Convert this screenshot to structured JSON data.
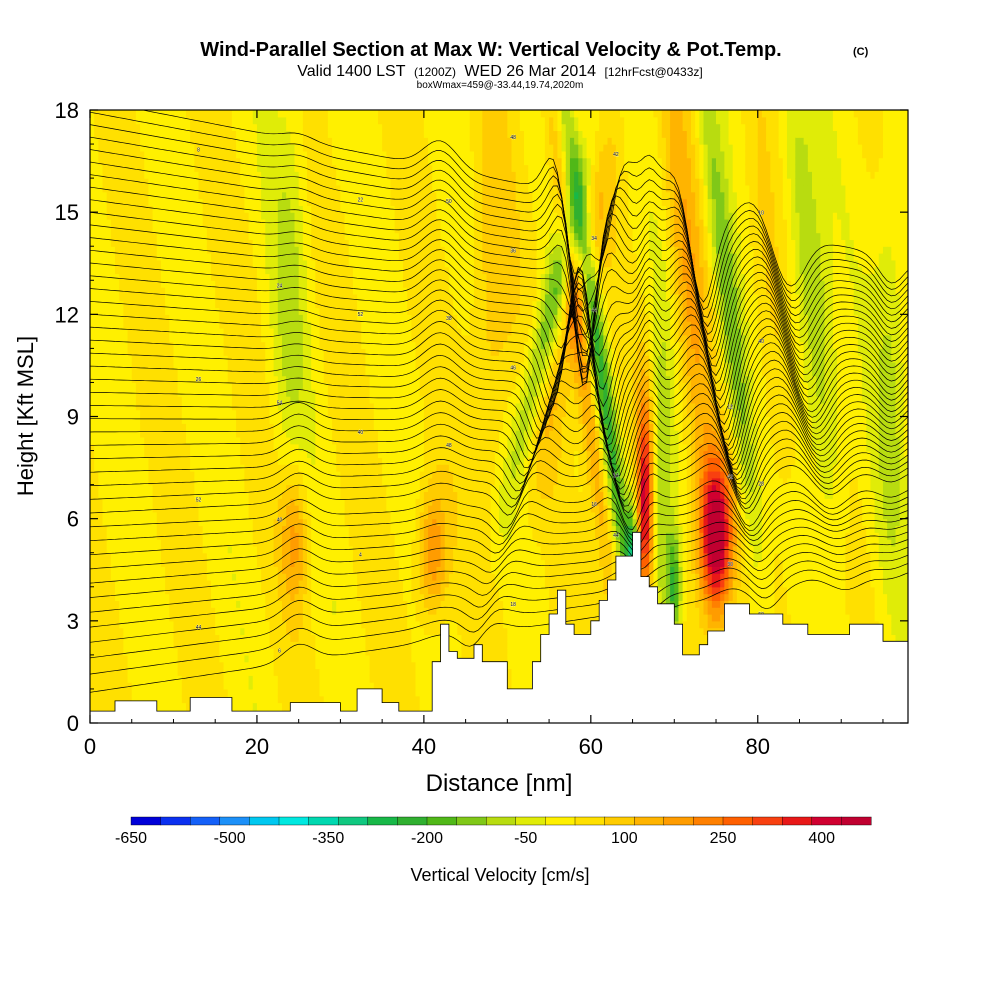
{
  "header": {
    "title": "Wind-Parallel Section at Max W: Vertical Velocity & Pot.Temp.",
    "copyright": "(C)",
    "valid_prefix": "Valid 1400 LST",
    "valid_z": "(1200Z)",
    "valid_date": "WED 26 Mar 2014",
    "valid_fcst": "[12hrFcst@0433z]",
    "boxinfo": "boxWmax=459@-33.44,19.74,2020m"
  },
  "chart_data": {
    "type": "heatmap",
    "title": "Wind-Parallel Section at Max W: Vertical Velocity & Pot.Temp.",
    "xlabel": "Distance [nm]",
    "ylabel": "Height [Kft MSL]",
    "xlim": [
      0,
      98
    ],
    "ylim": [
      0,
      18
    ],
    "x_ticks": [
      0,
      20,
      40,
      60,
      80
    ],
    "y_ticks": [
      0,
      3,
      6,
      9,
      12,
      15,
      18
    ],
    "x_tick_labels": [
      "0",
      "20",
      "40",
      "60",
      "80"
    ],
    "y_tick_labels": [
      "0",
      "3",
      "6",
      "9",
      "12",
      "15",
      "18"
    ],
    "colorbar": {
      "label": "Vertical Velocity [cm/s]",
      "tick_labels": [
        "-650",
        "-500",
        "-350",
        "-200",
        "-50",
        "100",
        "250",
        "400"
      ],
      "tick_values": [
        -650,
        -500,
        -350,
        -200,
        -50,
        100,
        250,
        400
      ],
      "range": [
        -650,
        475
      ],
      "colors": [
        "#0000d8",
        "#0a30f0",
        "#1460f8",
        "#1c90f8",
        "#00c8f0",
        "#00e8e0",
        "#00d8b0",
        "#10c880",
        "#18b848",
        "#30b030",
        "#50b818",
        "#80c818",
        "#b8dc10",
        "#e0ec08",
        "#fff000",
        "#ffe000",
        "#ffcc00",
        "#ffb400",
        "#ff9c00",
        "#ff8000",
        "#ff6000",
        "#f84010",
        "#e81818",
        "#d00030",
        "#c00030"
      ]
    },
    "terrain": [
      [
        0,
        0.35
      ],
      [
        3,
        0.35
      ],
      [
        3,
        0.65
      ],
      [
        8,
        0.65
      ],
      [
        8,
        0.35
      ],
      [
        12,
        0.35
      ],
      [
        12,
        0.75
      ],
      [
        17,
        0.75
      ],
      [
        17,
        0.35
      ],
      [
        24,
        0.35
      ],
      [
        24,
        0.6
      ],
      [
        30,
        0.6
      ],
      [
        30,
        0.35
      ],
      [
        32,
        0.35
      ],
      [
        32,
        1
      ],
      [
        35,
        1
      ],
      [
        35,
        0.6
      ],
      [
        37,
        0.6
      ],
      [
        37,
        0.35
      ],
      [
        41,
        0.35
      ],
      [
        41,
        1.8
      ],
      [
        42,
        1.8
      ],
      [
        42,
        2.9
      ],
      [
        43,
        2.9
      ],
      [
        43,
        2.1
      ],
      [
        44,
        2.1
      ],
      [
        44,
        1.9
      ],
      [
        46,
        1.9
      ],
      [
        46,
        2.3
      ],
      [
        47,
        2.3
      ],
      [
        47,
        1.8
      ],
      [
        50,
        1.8
      ],
      [
        50,
        1
      ],
      [
        53,
        1
      ],
      [
        53,
        1.8
      ],
      [
        54,
        1.8
      ],
      [
        54,
        2.6
      ],
      [
        55,
        2.6
      ],
      [
        55,
        3.2
      ],
      [
        56,
        3.2
      ],
      [
        56,
        3.9
      ],
      [
        57,
        3.9
      ],
      [
        57,
        2.9
      ],
      [
        58,
        2.9
      ],
      [
        58,
        2.6
      ],
      [
        60,
        2.6
      ],
      [
        60,
        3
      ],
      [
        61,
        3
      ],
      [
        61,
        3.6
      ],
      [
        62,
        3.6
      ],
      [
        62,
        4.2
      ],
      [
        63,
        4.2
      ],
      [
        63,
        4.9
      ],
      [
        65,
        4.9
      ],
      [
        65,
        5.6
      ],
      [
        66,
        5.6
      ],
      [
        66,
        4.3
      ],
      [
        67,
        4.3
      ],
      [
        67,
        4
      ],
      [
        68,
        4
      ],
      [
        68,
        3.5
      ],
      [
        70,
        3.5
      ],
      [
        70,
        2.9
      ],
      [
        71,
        2.9
      ],
      [
        71,
        2
      ],
      [
        73,
        2
      ],
      [
        73,
        2.3
      ],
      [
        74,
        2.3
      ],
      [
        74,
        2.7
      ],
      [
        76,
        2.7
      ],
      [
        76,
        3.5
      ],
      [
        79,
        3.5
      ],
      [
        79,
        3.2
      ],
      [
        83,
        3.2
      ],
      [
        83,
        2.9
      ],
      [
        86,
        2.9
      ],
      [
        86,
        2.6
      ],
      [
        91,
        2.6
      ],
      [
        91,
        2.9
      ],
      [
        95,
        2.9
      ],
      [
        95,
        2.4
      ],
      [
        98,
        2.4
      ]
    ],
    "contour_labels": [
      "44",
      "40",
      "40",
      "38",
      "36",
      "34",
      "32",
      "30",
      "28",
      "26",
      "24",
      "22",
      "20",
      "18",
      "16",
      "14",
      "12",
      "10",
      "8",
      "6",
      "4",
      "48",
      "46",
      "44",
      "42",
      "40",
      "50",
      "52",
      "54",
      "52",
      "50",
      "48",
      "46",
      "44",
      "42",
      "40",
      "38",
      "36",
      "34",
      "32"
    ]
  }
}
